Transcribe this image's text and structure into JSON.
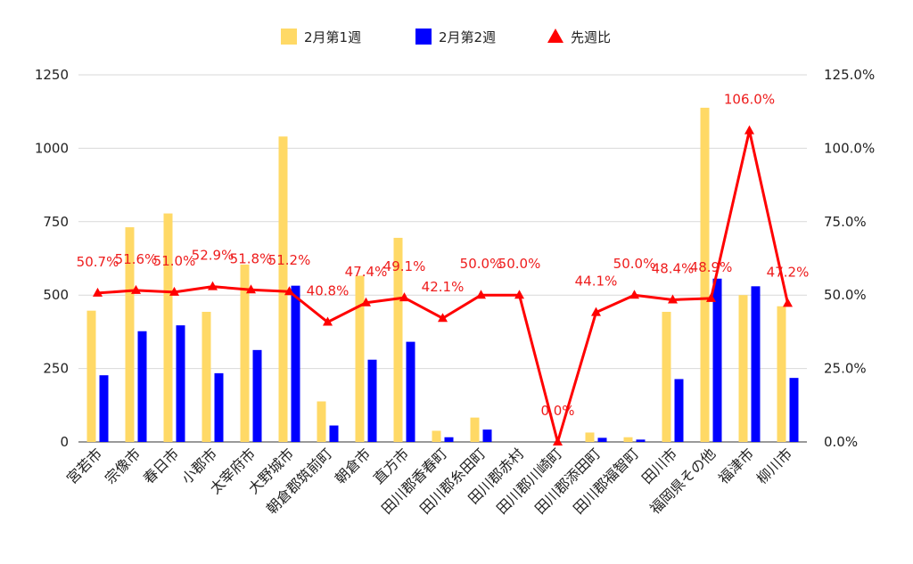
{
  "chart_data": {
    "type": "bar",
    "categories": [
      "宮若市",
      "宗像市",
      "春日市",
      "小郡市",
      "太宰府市",
      "大野城市",
      "朝倉郡筑前町",
      "朝倉市",
      "直方市",
      "田川郡香春町",
      "田川郡糸田町",
      "田川郡赤村",
      "田川郡川崎町",
      "田川郡添田町",
      "田川郡福智町",
      "田川市",
      "福岡県その他",
      "福津市",
      "柳川市"
    ],
    "series": [
      {
        "name": "2月第1週",
        "type": "bar",
        "axis": "left",
        "color": "#ffd966",
        "values": [
          447,
          731,
          778,
          443,
          604,
          1040,
          138,
          566,
          695,
          38,
          83,
          0,
          0,
          32,
          16,
          443,
          1138,
          500,
          462
        ]
      },
      {
        "name": "2月第2週",
        "type": "bar",
        "axis": "left",
        "color": "#0000ff",
        "values": [
          227,
          377,
          397,
          234,
          313,
          532,
          56,
          280,
          341,
          16,
          42,
          0,
          0,
          14,
          8,
          214,
          556,
          530,
          218
        ]
      },
      {
        "name": "先週比",
        "type": "line",
        "axis": "right",
        "color": "#ff0000",
        "values": [
          50.7,
          51.6,
          51.0,
          52.9,
          51.8,
          51.2,
          40.8,
          47.4,
          49.1,
          42.1,
          50.0,
          50.0,
          0.0,
          44.1,
          50.0,
          48.4,
          48.9,
          106.0,
          47.2
        ],
        "labels": [
          "50.7%",
          "51.6%",
          "51.0%",
          "52.9%",
          "51.8%",
          "51.2%",
          "40.8%",
          "47.4%",
          "49.1%",
          "42.1%",
          "50.0%",
          "50.0%",
          "0.0%",
          "44.1%",
          "50.0%",
          "48.4%",
          "48.9%",
          "106.0%",
          "47.2%"
        ]
      }
    ],
    "y_left": {
      "ylim": [
        0,
        1250
      ],
      "ticks": [
        "0",
        "250",
        "500",
        "750",
        "1000",
        "1250"
      ]
    },
    "y_right": {
      "ylim": [
        0,
        125
      ],
      "ticks": [
        "0.0%",
        "25.0%",
        "50.0%",
        "75.0%",
        "100.0%",
        "125.0%"
      ]
    },
    "legend": {
      "placement": "top-center",
      "entries": [
        "2月第1週",
        "2月第2週",
        "先週比"
      ]
    },
    "grid": true
  }
}
